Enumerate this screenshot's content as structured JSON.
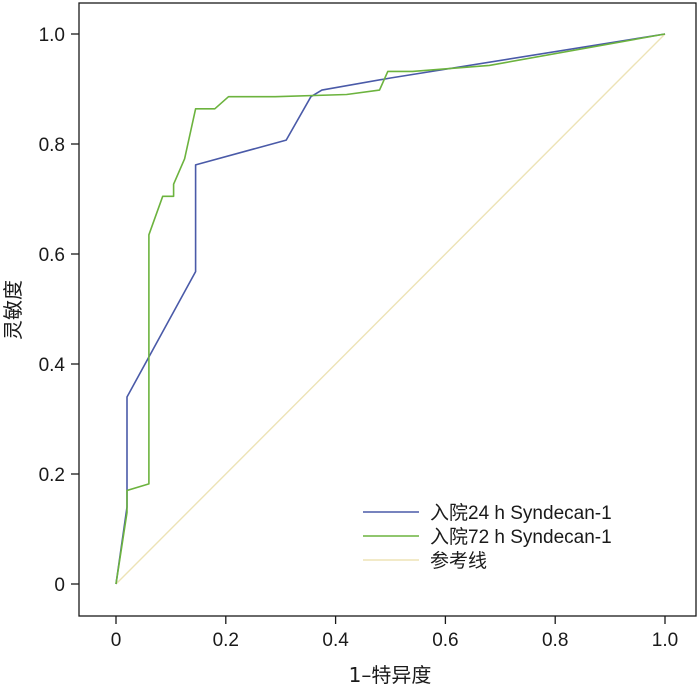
{
  "chart_data": {
    "type": "line",
    "title": "",
    "xlabel": "1–特异度",
    "ylabel": "灵敏度",
    "xlim": [
      0,
      1
    ],
    "ylim": [
      0,
      1
    ],
    "xticks": [
      "0",
      "0.2",
      "0.4",
      "0.6",
      "0.8",
      "1.0"
    ],
    "xtick_values": [
      0,
      0.2,
      0.4,
      0.6,
      0.8,
      1.0
    ],
    "yticks": [
      "0",
      "0.2",
      "0.4",
      "0.6",
      "0.8",
      "1.0"
    ],
    "ytick_values": [
      0,
      0.2,
      0.4,
      0.6,
      0.8,
      1.0
    ],
    "grid": false,
    "legend_position": "bottom-right",
    "series": [
      {
        "name": "入院24 h Syndecan-1",
        "color": "#4a5aa8",
        "x": [
          0,
          0.02,
          0.02,
          0.145,
          0.145,
          0.31,
          0.355,
          0.375,
          0.5,
          1.0
        ],
        "y": [
          0,
          0.14,
          0.34,
          0.568,
          0.762,
          0.807,
          0.886,
          0.898,
          0.92,
          1.0
        ]
      },
      {
        "name": "入院72 h Syndecan-1",
        "color": "#6cb33e",
        "x": [
          0,
          0.02,
          0.02,
          0.06,
          0.06,
          0.085,
          0.085,
          0.105,
          0.105,
          0.125,
          0.145,
          0.18,
          0.205,
          0.21,
          0.29,
          0.42,
          0.48,
          0.495,
          0.54,
          0.68,
          1.0
        ],
        "y": [
          0,
          0.13,
          0.17,
          0.182,
          0.635,
          0.705,
          0.705,
          0.705,
          0.727,
          0.773,
          0.864,
          0.864,
          0.886,
          0.886,
          0.886,
          0.89,
          0.898,
          0.932,
          0.932,
          0.943,
          1.0
        ]
      },
      {
        "name": "参考线",
        "color": "#ede3b6",
        "x": [
          0,
          1.0
        ],
        "y": [
          0,
          1.0
        ]
      }
    ]
  }
}
